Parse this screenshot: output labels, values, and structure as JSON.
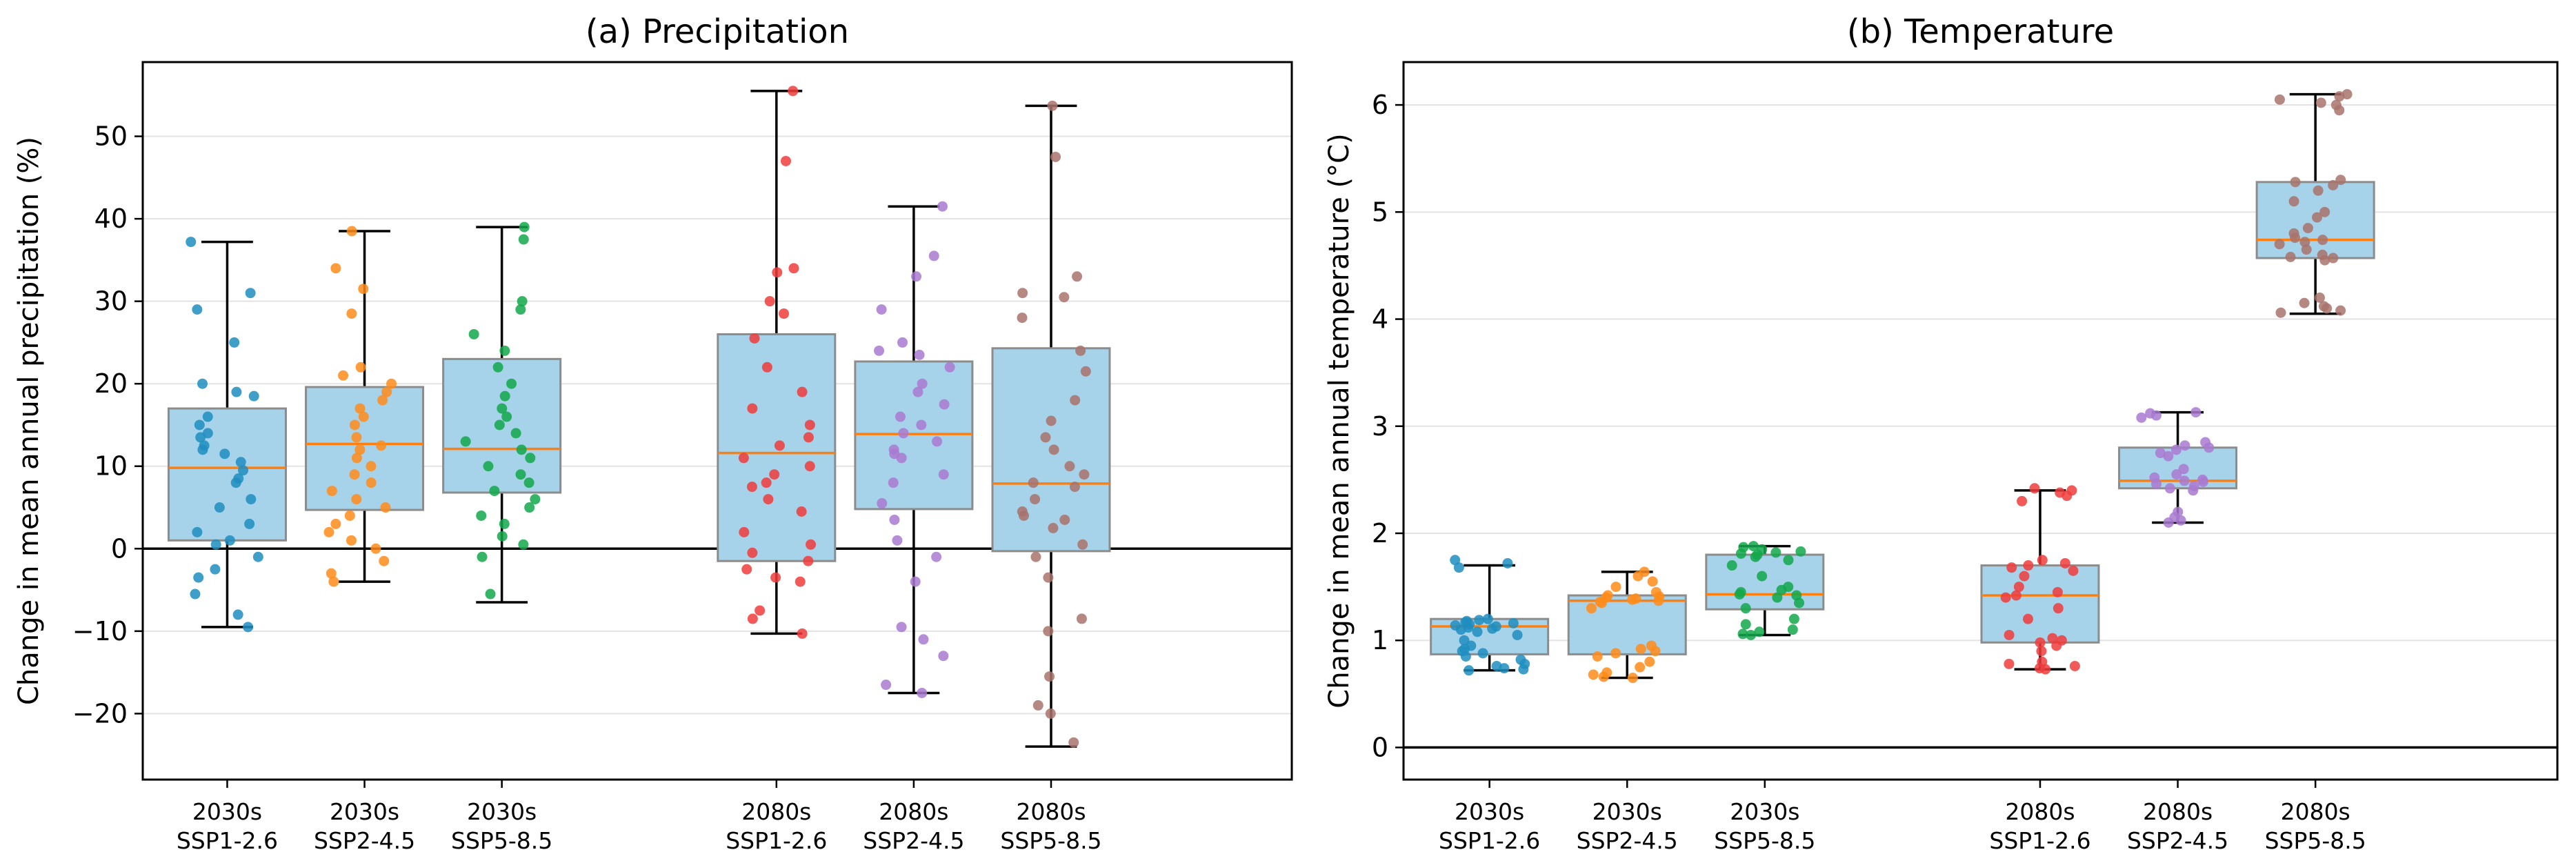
{
  "chart_data": [
    {
      "type": "box",
      "title": "(a) Precipitation",
      "ylabel": "Change in mean annual precipitation (%)",
      "xlabel": "",
      "ylim": [
        -28,
        59
      ],
      "yticks": [
        -20,
        -10,
        0,
        10,
        20,
        30,
        40,
        50
      ],
      "grid": "horizontal",
      "zero_line": 0,
      "categories": [
        {
          "line1": "2030s",
          "line2": "SSP1-2.6",
          "slot": 0,
          "color": "#1f8ebf",
          "whisker_low": -9.5,
          "q1": 1.0,
          "median": 9.8,
          "q3": 17.0,
          "whisker_high": 37.2,
          "points": [
            37.2,
            31.0,
            29.0,
            25.0,
            20.0,
            19.0,
            18.5,
            16.0,
            15.0,
            14.0,
            13.5,
            12.5,
            12.0,
            11.5,
            10.5,
            9.5,
            8.5,
            8.0,
            6.0,
            5.0,
            3.0,
            2.0,
            1.0,
            0.5,
            -1.0,
            -2.5,
            -3.5,
            -5.5,
            -8.0,
            -9.5
          ]
        },
        {
          "line1": "2030s",
          "line2": "SSP2-4.5",
          "slot": 1,
          "color": "#ff8c1a",
          "whisker_low": -4.0,
          "q1": 4.7,
          "median": 12.7,
          "q3": 19.6,
          "whisker_high": 38.5,
          "points": [
            38.5,
            34.0,
            31.5,
            28.5,
            22.0,
            21.0,
            20.0,
            19.0,
            18.0,
            17.0,
            16.0,
            15.0,
            13.5,
            12.5,
            12.0,
            11.0,
            10.0,
            9.0,
            8.0,
            7.0,
            6.0,
            5.0,
            4.0,
            3.0,
            2.0,
            1.0,
            0.0,
            -1.5,
            -3.0,
            -4.0
          ]
        },
        {
          "line1": "2030s",
          "line2": "SSP5-8.5",
          "slot": 2,
          "color": "#12a84a",
          "whisker_low": -6.5,
          "q1": 6.8,
          "median": 12.1,
          "q3": 23.0,
          "whisker_high": 39.0,
          "points": [
            39.0,
            37.5,
            30.0,
            29.0,
            26.0,
            24.0,
            22.0,
            20.0,
            18.5,
            17.0,
            16.0,
            15.0,
            14.0,
            13.0,
            12.0,
            11.0,
            10.0,
            9.0,
            8.0,
            7.0,
            6.0,
            5.0,
            4.0,
            3.0,
            1.5,
            0.5,
            -1.0,
            -5.5
          ]
        },
        {
          "line1": "2080s",
          "line2": "SSP1-2.6",
          "slot": 4,
          "color": "#f03c3c",
          "whisker_low": -10.3,
          "q1": -1.5,
          "median": 11.6,
          "q3": 26.0,
          "whisker_high": 55.5,
          "points": [
            55.5,
            47.0,
            34.0,
            33.5,
            30.0,
            28.5,
            25.5,
            22.0,
            19.0,
            17.0,
            15.0,
            13.5,
            12.5,
            11.0,
            10.0,
            9.0,
            8.0,
            7.5,
            6.0,
            4.5,
            2.0,
            0.5,
            -0.5,
            -1.5,
            -2.5,
            -3.5,
            -4.0,
            -7.5,
            -8.5,
            -10.3
          ]
        },
        {
          "line1": "2080s",
          "line2": "SSP2-4.5",
          "slot": 5,
          "color": "#a97ad1",
          "whisker_low": -17.5,
          "q1": 4.8,
          "median": 13.9,
          "q3": 22.7,
          "whisker_high": 41.5,
          "points": [
            41.5,
            35.5,
            33.0,
            29.0,
            25.0,
            24.0,
            23.5,
            22.0,
            20.0,
            19.0,
            17.5,
            16.0,
            15.0,
            14.0,
            13.0,
            12.0,
            11.5,
            11.0,
            9.0,
            8.0,
            5.5,
            3.5,
            1.0,
            -1.0,
            -4.0,
            -9.5,
            -11.0,
            -13.0,
            -16.5,
            -17.5
          ]
        },
        {
          "line1": "2080s",
          "line2": "SSP5-8.5",
          "slot": 6,
          "color": "#a8736b",
          "whisker_low": -24.0,
          "q1": -0.3,
          "median": 7.9,
          "q3": 24.3,
          "whisker_high": 53.7,
          "points": [
            53.7,
            47.5,
            33.0,
            31.0,
            30.5,
            28.0,
            24.0,
            21.5,
            18.0,
            15.5,
            13.5,
            12.0,
            10.0,
            9.0,
            8.0,
            7.5,
            6.0,
            4.5,
            4.0,
            3.5,
            2.5,
            0.5,
            -1.0,
            -3.5,
            -8.5,
            -10.0,
            -15.5,
            -19.0,
            -20.0,
            -23.5
          ]
        }
      ]
    },
    {
      "type": "box",
      "title": "(b) Temperature",
      "ylabel": "Change in mean annual temperature (°C)",
      "xlabel": "",
      "ylim": [
        -0.3,
        6.4
      ],
      "yticks": [
        0,
        1,
        2,
        3,
        4,
        5,
        6
      ],
      "grid": "horizontal",
      "zero_line": 0,
      "categories": [
        {
          "line1": "2030s",
          "line2": "SSP1-2.6",
          "slot": 0,
          "color": "#1f8ebf",
          "whisker_low": 0.72,
          "q1": 0.87,
          "median": 1.13,
          "q3": 1.2,
          "whisker_high": 1.7,
          "points": [
            1.75,
            1.72,
            1.68,
            1.2,
            1.19,
            1.18,
            1.17,
            1.16,
            1.15,
            1.14,
            1.13,
            1.12,
            1.11,
            1.1,
            1.08,
            1.05,
            1.0,
            0.95,
            0.92,
            0.9,
            0.88,
            0.85,
            0.82,
            0.78,
            0.76,
            0.74,
            0.72,
            0.73
          ]
        },
        {
          "line1": "2030s",
          "line2": "SSP2-4.5",
          "slot": 1,
          "color": "#ff8c1a",
          "whisker_low": 0.65,
          "q1": 0.87,
          "median": 1.37,
          "q3": 1.42,
          "whisker_high": 1.64,
          "points": [
            1.64,
            1.6,
            1.55,
            1.5,
            1.45,
            1.42,
            1.41,
            1.4,
            1.39,
            1.38,
            1.37,
            1.36,
            1.35,
            1.3,
            0.95,
            0.92,
            0.9,
            0.88,
            0.85,
            0.8,
            0.75,
            0.7,
            0.68,
            0.66,
            0.65
          ]
        },
        {
          "line1": "2030s",
          "line2": "SSP5-8.5",
          "slot": 2,
          "color": "#12a84a",
          "whisker_low": 1.05,
          "q1": 1.29,
          "median": 1.43,
          "q3": 1.8,
          "whisker_high": 1.88,
          "points": [
            1.88,
            1.87,
            1.85,
            1.83,
            1.82,
            1.81,
            1.8,
            1.78,
            1.75,
            1.7,
            1.6,
            1.5,
            1.47,
            1.45,
            1.43,
            1.42,
            1.4,
            1.35,
            1.3,
            1.2,
            1.15,
            1.1,
            1.08,
            1.06,
            1.05
          ]
        },
        {
          "line1": "2080s",
          "line2": "SSP1-2.6",
          "slot": 4,
          "color": "#f03c3c",
          "whisker_low": 0.73,
          "q1": 0.98,
          "median": 1.42,
          "q3": 1.7,
          "whisker_high": 2.4,
          "points": [
            2.42,
            2.4,
            2.38,
            2.35,
            2.3,
            1.75,
            1.72,
            1.7,
            1.68,
            1.65,
            1.6,
            1.5,
            1.45,
            1.42,
            1.4,
            1.3,
            1.2,
            1.05,
            1.02,
            1.0,
            0.98,
            0.95,
            0.9,
            0.8,
            0.78,
            0.76,
            0.74,
            0.73
          ]
        },
        {
          "line1": "2080s",
          "line2": "SSP2-4.5",
          "slot": 5,
          "color": "#a97ad1",
          "whisker_low": 2.1,
          "q1": 2.42,
          "median": 2.49,
          "q3": 2.8,
          "whisker_high": 3.13,
          "points": [
            3.13,
            3.12,
            3.1,
            3.08,
            2.85,
            2.82,
            2.8,
            2.78,
            2.75,
            2.72,
            2.6,
            2.55,
            2.52,
            2.5,
            2.49,
            2.48,
            2.46,
            2.44,
            2.42,
            2.4,
            2.2,
            2.15,
            2.12,
            2.1
          ]
        },
        {
          "line1": "2080s",
          "line2": "SSP5-8.5",
          "slot": 6,
          "color": "#a8736b",
          "whisker_low": 4.05,
          "q1": 4.57,
          "median": 4.74,
          "q3": 5.28,
          "whisker_high": 6.1,
          "points": [
            6.1,
            6.08,
            6.05,
            6.02,
            6.0,
            5.95,
            5.3,
            5.28,
            5.25,
            5.2,
            5.1,
            5.0,
            4.95,
            4.85,
            4.8,
            4.76,
            4.74,
            4.72,
            4.7,
            4.65,
            4.6,
            4.58,
            4.57,
            4.55,
            4.2,
            4.15,
            4.12,
            4.1,
            4.08,
            4.06
          ]
        }
      ]
    }
  ]
}
